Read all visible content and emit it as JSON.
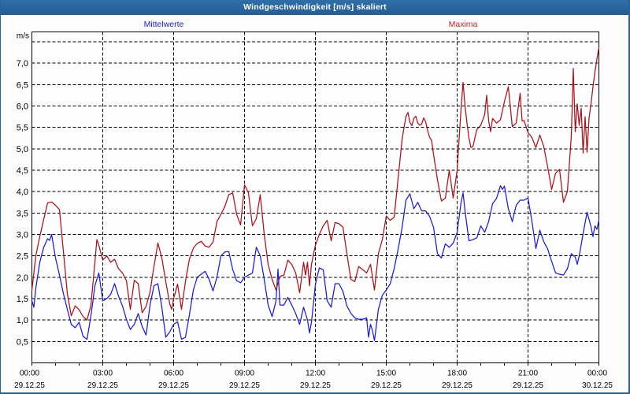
{
  "window": {
    "title": "Windgeschwindigkeit [m/s] skaliert",
    "titlebar_text_color": "#ffffff",
    "titlebar_bg": "#2a66a0",
    "border_color": "#2a6399",
    "background": "#fcfcfd"
  },
  "legend": {
    "items": [
      {
        "label": "Mittelwerte",
        "color": "#2222cc"
      },
      {
        "label": "Maxima",
        "color": "#c42a2a"
      }
    ]
  },
  "axes": {
    "unit_label": "m/s",
    "y_tick_labels": [
      "0,5",
      "1,0",
      "1,5",
      "2,0",
      "2,5",
      "3,0",
      "3,5",
      "4,0",
      "4,5",
      "5,0",
      "5,5",
      "6,0",
      "6,5",
      "7,0"
    ],
    "x_tick_labels": [
      "00:00",
      "03:00",
      "06:00",
      "09:00",
      "12:00",
      "15:00",
      "18:00",
      "21:00",
      "00:00"
    ],
    "x_date_labels": [
      "29.12.25",
      "29.12.25",
      "29.12.25",
      "29.12.25",
      "29.12.25",
      "29.12.25",
      "29.12.25",
      "29.12.25",
      "30.12.25"
    ]
  },
  "chart_data": {
    "type": "line",
    "title": "Windgeschwindigkeit [m/s] skaliert",
    "xlabel": "",
    "ylabel": "m/s",
    "x_start": "00:00",
    "x_step_minutes": 5,
    "x_total_hours": 24,
    "ylim": [
      0,
      7.73
    ],
    "y_grid_min": 0.5,
    "y_grid_max": 7.5,
    "y_grid_step": 0.5,
    "y_labeled_max": 7.0,
    "x_grid_step_hours": 3,
    "x_minor_tick_hours": 1,
    "grid": "dashed",
    "legend_position": "top",
    "series": [
      {
        "name": "Mittelwerte",
        "color": "#1b1bd9",
        "values": [
          1.45,
          1.3,
          1.75,
          2.05,
          2.35,
          2.525,
          2.7,
          2.8,
          2.9,
          2.86,
          3,
          2.725,
          2.45,
          2.25,
          2.05,
          1.835,
          1.62,
          1.435,
          1.25,
          1.075,
          0.9,
          0.86,
          0.82,
          0.885,
          0.95,
          0.785,
          0.62,
          0.585,
          0.55,
          0.825,
          1.1,
          1.45,
          1.8,
          1.95,
          2.1,
          1.775,
          1.45,
          1.475,
          1.5,
          1.55,
          1.6,
          1.725,
          1.85,
          1.705,
          1.56,
          1.445,
          1.33,
          1.175,
          1.02,
          0.9,
          0.78,
          0.84,
          0.9,
          1.025,
          1.15,
          1,
          0.85,
          0.75,
          0.65,
          1,
          1.35,
          1.575,
          1.8,
          1.825,
          1.85,
          1.575,
          1.3,
          0.95,
          0.6,
          0.66,
          0.72,
          0.81,
          0.9,
          0.93,
          0.96,
          0.755,
          0.55,
          0.575,
          0.6,
          0.86,
          1.12,
          1.41,
          1.7,
          1.85,
          2,
          2.035,
          2.07,
          2.105,
          2.14,
          2.045,
          1.95,
          1.815,
          1.68,
          1.84,
          2,
          2.25,
          2.5,
          2.545,
          2.59,
          2.595,
          2.6,
          2.39,
          2.18,
          2.05,
          1.92,
          1.895,
          1.87,
          1.935,
          2,
          2.025,
          2.05,
          2.075,
          2.1,
          2.4,
          2.7,
          2.6,
          2.5,
          2.225,
          1.95,
          1.65,
          1.35,
          1.215,
          1.08,
          1.265,
          1.45,
          2.19,
          1.35,
          1.35,
          1.35,
          1.44,
          1.53,
          1.44,
          1.35,
          1.25,
          1.15,
          1.025,
          0.9,
          1.1,
          1.3,
          1.15,
          1,
          0.7,
          0.95,
          1.39,
          1.83,
          2.025,
          2.22,
          2.195,
          2.17,
          1.81,
          1.45,
          1.375,
          1.3,
          1.575,
          1.85,
          1.85,
          1.85,
          1.76,
          1.67,
          1.5,
          1.33,
          1.245,
          1.16,
          1.105,
          1.05,
          1.035,
          1.02,
          1.02,
          1.02,
          1.035,
          1.05,
          0.6,
          0.9,
          0.75,
          0.52,
          0.885,
          1.25,
          1.415,
          1.58,
          1.64,
          1.7,
          1.775,
          1.85,
          2.025,
          2.2,
          2.425,
          2.65,
          2.9,
          3.15,
          3.475,
          3.8,
          3.875,
          3.95,
          3.775,
          3.6,
          3.675,
          3.75,
          3.65,
          3.55,
          3.55,
          3.55,
          3.485,
          3.42,
          3.295,
          3.17,
          2.86,
          2.55,
          2.5,
          2.45,
          2.615,
          2.78,
          2.74,
          2.7,
          2.75,
          2.8,
          2.925,
          3.05,
          3.4,
          3.75,
          3.97,
          3.55,
          3.2,
          2.85,
          2.865,
          2.88,
          2.9,
          2.92,
          3.06,
          3.2,
          3.125,
          3.05,
          3.175,
          3.3,
          3.51,
          3.72,
          3.78,
          3.84,
          3.99,
          4.14,
          4.05,
          4.13,
          3.865,
          3.6,
          3.45,
          3.3,
          3.49,
          3.68,
          3.74,
          3.8,
          3.8,
          3.8,
          3.825,
          3.85,
          3.575,
          3.3,
          2.985,
          2.67,
          2.885,
          3.1,
          2.965,
          2.83,
          2.745,
          2.66,
          2.515,
          2.37,
          2.235,
          2.1,
          2.085,
          2.07,
          2.06,
          2.05,
          2.125,
          2.2,
          2.375,
          2.55,
          2.51,
          2.47,
          2.3,
          2.5,
          2.76,
          3.02,
          3.27,
          3.52,
          3.35,
          3.18,
          2.95,
          3.2,
          3.12,
          3.33
        ]
      },
      {
        "name": "Maxima",
        "color": "#ac1018",
        "values": [
          1.7,
          2.1,
          2.5,
          2.725,
          2.95,
          3.15,
          3.35,
          3.545,
          3.74,
          3.75,
          3.76,
          3.72,
          3.68,
          3.63,
          3.58,
          3.09,
          2.6,
          2.11,
          1.62,
          1.36,
          1.1,
          1.215,
          1.33,
          1.285,
          1.24,
          1.16,
          1.08,
          1.04,
          1,
          1.175,
          1.35,
          1.85,
          2.35,
          2.88,
          2.75,
          2.575,
          2.4,
          2.45,
          2.5,
          2.425,
          2.35,
          2.385,
          2.42,
          2.31,
          2.2,
          2.15,
          2.1,
          2.01,
          1.92,
          1.585,
          1.25,
          1.59,
          1.93,
          1.89,
          1.85,
          1.51,
          1.17,
          1.245,
          1.32,
          1.485,
          1.65,
          1.95,
          2.25,
          2.525,
          2.8,
          2.625,
          2.45,
          2.175,
          1.9,
          1.64,
          1.38,
          1.25,
          1.5,
          1.67,
          1.84,
          1.545,
          1.25,
          1.575,
          1.9,
          2.16,
          2.42,
          2.55,
          2.68,
          2.735,
          2.79,
          2.815,
          2.84,
          2.785,
          2.73,
          2.715,
          2.7,
          2.76,
          2.82,
          3.06,
          3.3,
          3.385,
          3.47,
          3.56,
          3.65,
          3.79,
          3.93,
          3.95,
          3.97,
          3.72,
          3.47,
          3.345,
          3.22,
          3.69,
          4.16,
          4.065,
          3.97,
          3.585,
          3.2,
          3.285,
          3.37,
          3.65,
          3.93,
          3.465,
          3,
          2.65,
          2.3,
          2.125,
          1.95,
          1.825,
          1.7,
          1.86,
          2.02,
          2.035,
          2.05,
          2.225,
          2.4,
          2.35,
          2.3,
          2.2,
          2.1,
          1.87,
          1.64,
          1.995,
          2.35,
          2.05,
          2.35,
          1.8,
          2.3,
          2.525,
          2.75,
          2.875,
          3,
          3.1,
          3.2,
          3.265,
          3.33,
          3.09,
          2.85,
          3.065,
          3.28,
          3.265,
          3.25,
          3.21,
          3.17,
          2.86,
          2.55,
          2.25,
          1.95,
          1.925,
          1.9,
          2.075,
          2.25,
          2.215,
          2.18,
          2.14,
          2.1,
          2.2,
          2.3,
          2,
          1.7,
          2.125,
          2.55,
          2.715,
          2.88,
          3.155,
          3.43,
          3.38,
          3.33,
          3.365,
          3.4,
          3.85,
          4.3,
          4.75,
          5.2,
          5.5,
          5.75,
          5.85,
          5.62,
          5.54,
          5.71,
          5.76,
          5.6,
          5.55,
          5.58,
          5.72,
          5.63,
          5.43,
          5.27,
          5.2,
          4.87,
          4.575,
          4.28,
          4.03,
          3.78,
          3.815,
          3.85,
          4.175,
          4.5,
          4.175,
          3.85,
          4.175,
          4.5,
          5.225,
          5.95,
          6.55,
          6,
          5.6,
          5.25,
          5.03,
          5.05,
          5.25,
          5.45,
          5.5,
          5.55,
          5.675,
          5.8,
          6.25,
          5.65,
          5.4,
          5.71,
          5.655,
          5.6,
          5.64,
          5.68,
          5.89,
          6.1,
          6.275,
          6.45,
          5.985,
          5.52,
          5.56,
          5.6,
          5.95,
          6.3,
          5.65,
          5.66,
          5.52,
          5.38,
          5.32,
          5.26,
          5.145,
          5.03,
          5.175,
          5.32,
          5.185,
          5.05,
          4.81,
          4.57,
          4.31,
          4.05,
          4.24,
          4.43,
          4.475,
          4.52,
          4.135,
          3.75,
          3.875,
          4,
          4.65,
          5.3,
          6.88,
          5.4,
          6.05,
          5.55,
          5.95,
          4.9,
          5.75,
          4.92,
          5.72,
          6.05,
          6.45,
          6.8,
          7.1,
          7.35
        ]
      }
    ]
  }
}
